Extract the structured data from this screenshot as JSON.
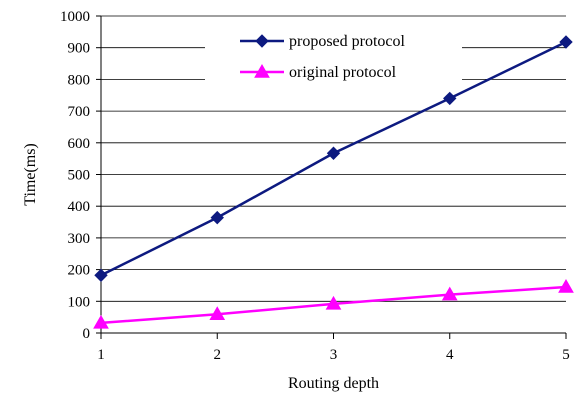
{
  "chart_data": {
    "type": "line",
    "xlabel": "Routing depth",
    "ylabel": "Time(ms)",
    "x": [
      1,
      2,
      3,
      4,
      5
    ],
    "x_tick_labels": [
      "1",
      "2",
      "3",
      "4",
      "5"
    ],
    "ylim": [
      0,
      1000
    ],
    "y_tick_labels": [
      "0",
      "100",
      "200",
      "300",
      "400",
      "500",
      "600",
      "700",
      "800",
      "900",
      "1000"
    ],
    "grid": "horizontal",
    "legend_position": "top-center",
    "series": [
      {
        "name": "proposed protocol",
        "marker": "diamond",
        "color": "#0d1a80",
        "values": [
          182,
          364,
          567,
          740,
          918
        ]
      },
      {
        "name": "original protocol",
        "marker": "triangle",
        "color": "#ff00ff",
        "values": [
          32,
          59,
          92,
          121,
          145
        ]
      }
    ]
  }
}
